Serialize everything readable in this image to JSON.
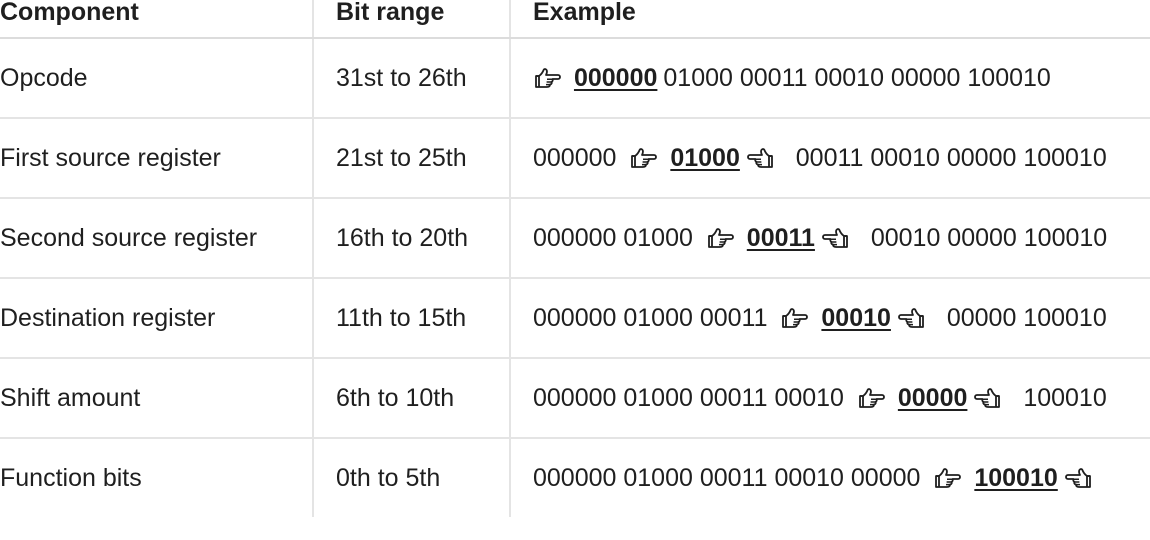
{
  "table": {
    "headers": [
      "Component",
      "Bit range",
      "Example"
    ],
    "rows": [
      {
        "component": "Opcode",
        "bit_range": "31st to 26th",
        "before": "",
        "highlight": "000000",
        "after": "01000 00011 00010 00000 100010",
        "show_left_hand": true,
        "show_right_hand": false
      },
      {
        "component": "First source register",
        "bit_range": "21st to 25th",
        "before": "000000",
        "highlight": "01000",
        "after": "00011 00010 00000 100010",
        "show_left_hand": true,
        "show_right_hand": true
      },
      {
        "component": "Second source register",
        "bit_range": "16th to 20th",
        "before": "000000 01000",
        "highlight": "00011",
        "after": "00010 00000 100010",
        "show_left_hand": true,
        "show_right_hand": true
      },
      {
        "component": "Destination register",
        "bit_range": "11th to 15th",
        "before": "000000 01000 00011",
        "highlight": "00010",
        "after": "00000 100010",
        "show_left_hand": true,
        "show_right_hand": true
      },
      {
        "component": "Shift amount",
        "bit_range": "6th to 10th",
        "before": "000000 01000 00011 00010",
        "highlight": "00000",
        "after": "100010",
        "show_left_hand": true,
        "show_right_hand": true
      },
      {
        "component": "Function bits",
        "bit_range": "0th to 5th",
        "before": "000000 01000 00011 00010 00000",
        "highlight": "100010",
        "after": "",
        "show_left_hand": true,
        "show_right_hand": true
      }
    ]
  },
  "icons": {
    "left_marker": "hand-pointing-right-icon",
    "right_marker": "hand-pointing-left-icon"
  }
}
